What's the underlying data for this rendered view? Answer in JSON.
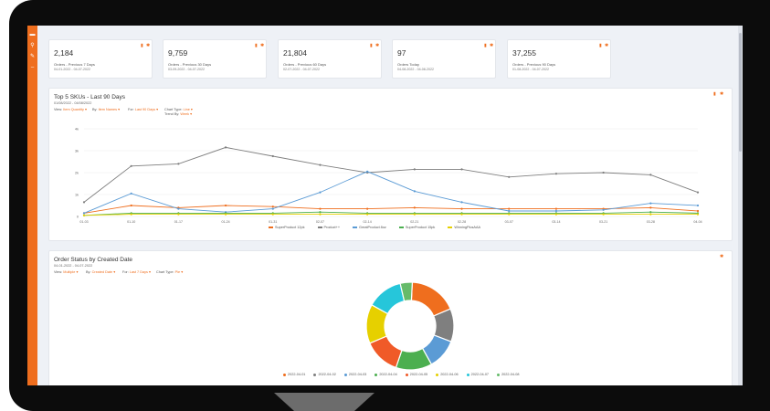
{
  "sidebar": {
    "icons": [
      "folder-icon",
      "search-icon",
      "wrench-icon",
      "dash-icon"
    ]
  },
  "cards": [
    {
      "value": "2,184",
      "label": "Orders - Previous 7 Days",
      "date": "04-01-2022 - 04-07-2022"
    },
    {
      "value": "9,759",
      "label": "Orders - Previous 30 Days",
      "date": "03-09-2022 - 04-07-2022"
    },
    {
      "value": "21,804",
      "label": "Orders - Previous 60 Days",
      "date": "02-07-2022 - 04-07-2022"
    },
    {
      "value": "97",
      "label": "Orders Today",
      "date": "04-08-2022 - 04-08-2022"
    },
    {
      "value": "37,255",
      "label": "Orders - Previous 90 Days",
      "date": "01-08-2022 - 04-07-2022"
    }
  ],
  "sku_panel": {
    "title": "Top 5 SKUs - Last 90 Days",
    "date": "01/08/2022 - 04/08/2022",
    "controls": {
      "view_label": "View:",
      "view_value": "Item Quantity",
      "by_label": "By:",
      "by_value": "Item Names",
      "for_label": "For:",
      "for_value": "Last 90 Days",
      "chart_type_label": "Chart Type:",
      "chart_type_value": "Line",
      "trend_label": "Trend By:",
      "trend_value": "Week"
    }
  },
  "status_panel": {
    "title": "Order Status by Created Date",
    "date": "04-01-2022 - 04-07-2022",
    "controls": {
      "view_label": "View:",
      "view_value": "Multiple",
      "by_label": "By:",
      "by_value": "Created Date",
      "for_label": "For:",
      "for_value": "Last 7 Days",
      "chart_type_label": "Chart Type:",
      "chart_type_value": "Pie"
    }
  },
  "colors": {
    "accent": "#ef6e1e"
  },
  "chart_data": [
    {
      "type": "line",
      "title": "Top 5 SKUs - Last 90 Days",
      "categories": [
        "01-03",
        "01-10",
        "01-17",
        "01-24",
        "01-31",
        "02-07",
        "02-14",
        "02-21",
        "02-28",
        "03-07",
        "03-14",
        "03-21",
        "03-28",
        "04-04"
      ],
      "yticks": [
        "0",
        "1k",
        "2k",
        "3k",
        "4k"
      ],
      "ylim": [
        0,
        4000
      ],
      "series": [
        {
          "name": "SuperProduct 12pk",
          "color": "#ef6e1e",
          "values": [
            150,
            500,
            400,
            500,
            450,
            350,
            350,
            400,
            350,
            350,
            350,
            350,
            400,
            250
          ]
        },
        {
          "name": "Product++",
          "color": "#7f7f7f",
          "values": [
            650,
            2300,
            2400,
            3150,
            2750,
            2350,
            2000,
            2150,
            2150,
            1800,
            1950,
            2000,
            1900,
            1100
          ]
        },
        {
          "name": "GreatProduct 8oz",
          "color": "#5b9bd5",
          "values": [
            150,
            1050,
            350,
            200,
            350,
            1100,
            2050,
            1150,
            650,
            250,
            250,
            300,
            600,
            500
          ]
        },
        {
          "name": "SuperProduct 15pk",
          "color": "#4caf50",
          "values": [
            50,
            150,
            150,
            150,
            150,
            200,
            150,
            150,
            150,
            150,
            150,
            150,
            200,
            150
          ]
        },
        {
          "name": "WinningPlusAAA",
          "color": "#e6d000",
          "values": [
            50,
            100,
            100,
            100,
            100,
            100,
            100,
            100,
            100,
            100,
            100,
            100,
            100,
            100
          ]
        }
      ]
    },
    {
      "type": "pie",
      "title": "Order Status by Created Date",
      "categories": [
        "2022-04-01",
        "2022-04-02",
        "2022-04-03",
        "2022-04-04",
        "2022-04-05",
        "2022-04-06",
        "2022-04-07",
        "2022-04-08"
      ],
      "values": [
        16,
        11,
        10,
        12,
        12,
        13,
        12,
        4
      ],
      "colors": [
        "#ef6e1e",
        "#7f7f7f",
        "#5b9bd5",
        "#4caf50",
        "#f05a28",
        "#e6d000",
        "#26c6da",
        "#66bb6a"
      ]
    }
  ]
}
